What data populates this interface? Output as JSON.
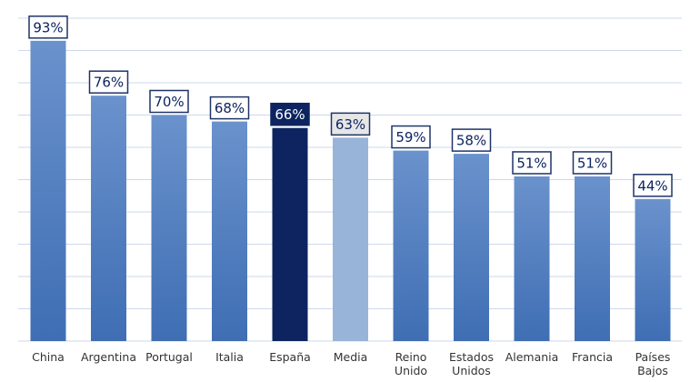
{
  "chart_data": {
    "type": "bar",
    "title": "",
    "xlabel": "",
    "ylabel": "",
    "categories": [
      [
        "China"
      ],
      [
        "Argentina"
      ],
      [
        "Portugal"
      ],
      [
        "Italia"
      ],
      [
        "España"
      ],
      [
        "Media"
      ],
      [
        "Reino",
        "Unido"
      ],
      [
        "Estados",
        "Unidos"
      ],
      [
        "Alemania"
      ],
      [
        "Francia"
      ],
      [
        "Países",
        "Bajos"
      ]
    ],
    "values": [
      93,
      76,
      70,
      68,
      66,
      63,
      59,
      58,
      51,
      51,
      44
    ],
    "value_labels": [
      "93%",
      "76%",
      "70%",
      "68%",
      "66%",
      "63%",
      "59%",
      "58%",
      "51%",
      "51%",
      "44%"
    ],
    "ylim": [
      0,
      100
    ],
    "grid": true,
    "highlight": {
      "index": 4,
      "color": "#0d2461",
      "label_text_color": "#ffffff"
    },
    "reference": {
      "index": 5,
      "color": "#98b4d8",
      "label_fill": "#e6e6e6"
    },
    "bar_color_top": "#6a92cc",
    "bar_color_bottom": "#3f6eb4",
    "label_text_color": "#0d2461",
    "label_border_color": "#1f3468"
  }
}
